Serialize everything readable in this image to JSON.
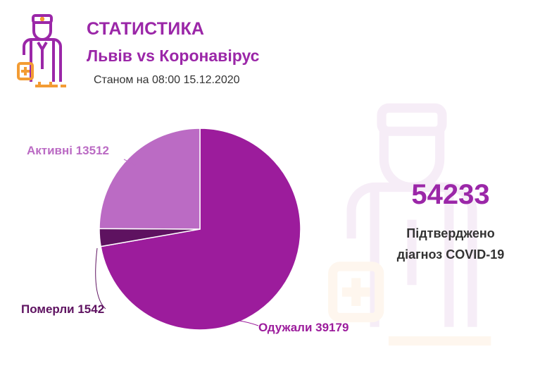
{
  "header": {
    "title": "СТАТИСТИКА",
    "subtitle": "Львів vs Коронавірус",
    "datestamp": "Станом на 08:00 15.12.2020"
  },
  "logo": {
    "icon": "doctor-icon"
  },
  "summary": {
    "total": "54233",
    "label_line1": "Підтверджено",
    "label_line2": "діагноз COVID-19"
  },
  "colors": {
    "brand": "#9b27a8",
    "recovered": "#9c1c9c",
    "active": "#bb6bc4",
    "deaths": "#5e1260",
    "accent_orange": "#f39c34"
  },
  "chart_data": {
    "type": "pie",
    "slices": [
      {
        "label": "Одужали 39179",
        "name": "Одужали",
        "value": 39179,
        "color": "#9c1c9c",
        "text_color": "#9c1c9c"
      },
      {
        "label": "Померли 1542",
        "name": "Померли",
        "value": 1542,
        "color": "#5e1260",
        "text_color": "#5e1260"
      },
      {
        "label": "Активні 13512",
        "name": "Активні",
        "value": 13512,
        "color": "#bb6bc4",
        "text_color": "#bb6bc4"
      }
    ],
    "title": "",
    "legend": "none"
  }
}
